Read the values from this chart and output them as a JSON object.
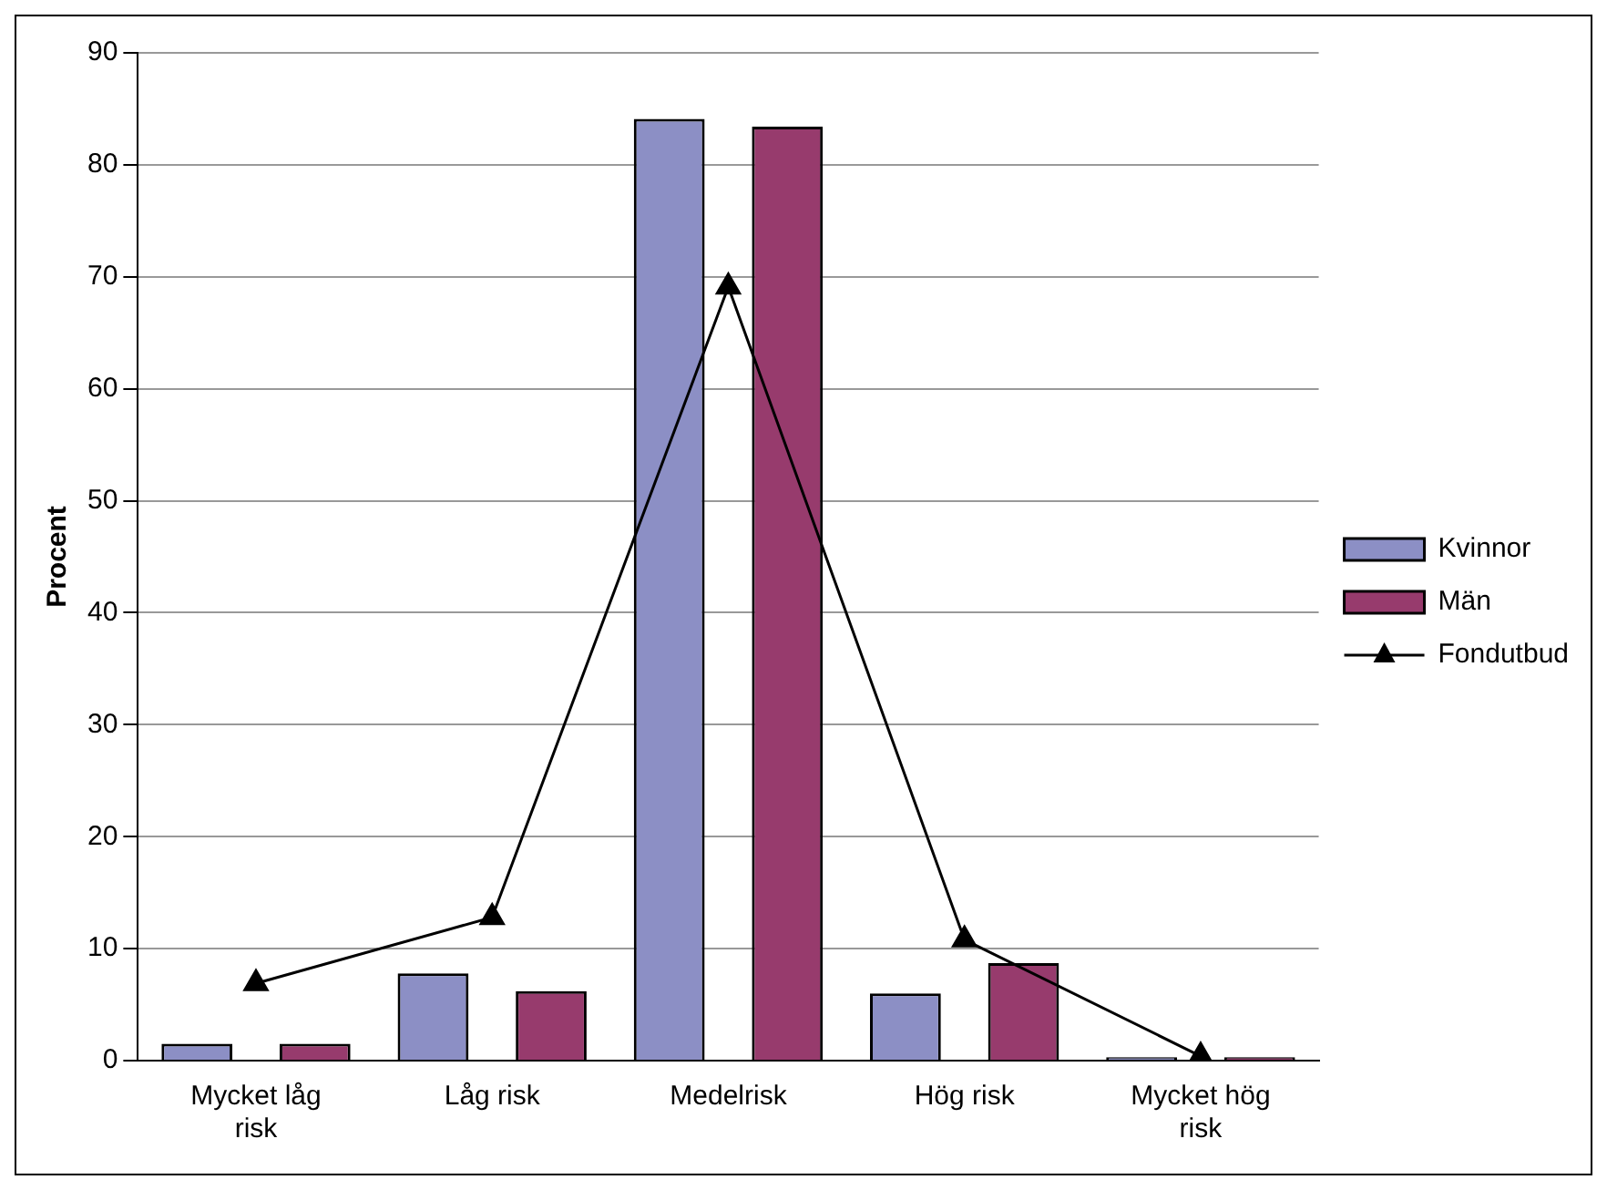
{
  "chart_data": {
    "type": "bar",
    "ylabel": "Procent",
    "categories": [
      "Mycket låg risk",
      "Låg risk",
      "Medelrisk",
      "Hög risk",
      "Mycket hög risk"
    ],
    "series": [
      {
        "name": "Kvinnor",
        "color": "#8c8fc5",
        "values": [
          1.5,
          7.8,
          84.1,
          6.0,
          0.3
        ]
      },
      {
        "name": "Män",
        "color": "#973b6d",
        "values": [
          1.5,
          6.2,
          83.4,
          8.7,
          0.3
        ]
      },
      {
        "name": "Fondutbud",
        "type": "line",
        "color": "#000000",
        "marker": "triangle",
        "values": [
          6.9,
          12.8,
          69.1,
          10.8,
          0.4
        ]
      }
    ],
    "ylim": [
      0,
      90
    ],
    "yticks": [
      0,
      10,
      20,
      30,
      40,
      50,
      60,
      70,
      80,
      90
    ],
    "grid": "y",
    "legend": "right"
  }
}
